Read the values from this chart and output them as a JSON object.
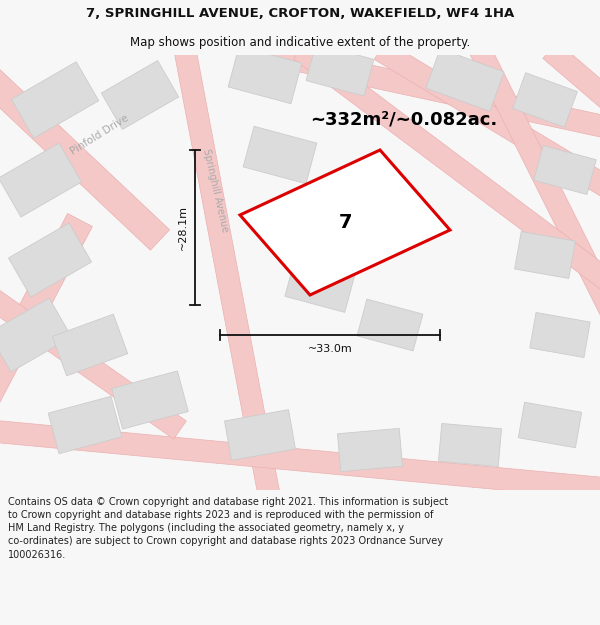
{
  "title_line1": "7, SPRINGHILL AVENUE, CROFTON, WAKEFIELD, WF4 1HA",
  "title_line2": "Map shows position and indicative extent of the property.",
  "area_text": "~332m²/~0.082ac.",
  "label_7": "7",
  "dim_vertical": "~28.1m",
  "dim_horizontal": "~33.0m",
  "footer": "Contains OS data © Crown copyright and database right 2021. This information is subject\nto Crown copyright and database rights 2023 and is reproduced with the permission of\nHM Land Registry. The polygons (including the associated geometry, namely x, y\nco-ordinates) are subject to Crown copyright and database rights 2023 Ordnance Survey\n100026316.",
  "bg_color": "#f7f7f7",
  "map_bg": "#ffffff",
  "road_color": "#f5c8c8",
  "road_edge_color": "#ebb0b0",
  "building_color": "#dcdcdc",
  "building_edge_color": "#cccccc",
  "plot_color": "#dd0000",
  "street_label_color": "#aaaaaa",
  "title_color": "#111111",
  "footer_color": "#222222",
  "dim_color": "#111111",
  "map_border_color": "#bbbbbb"
}
